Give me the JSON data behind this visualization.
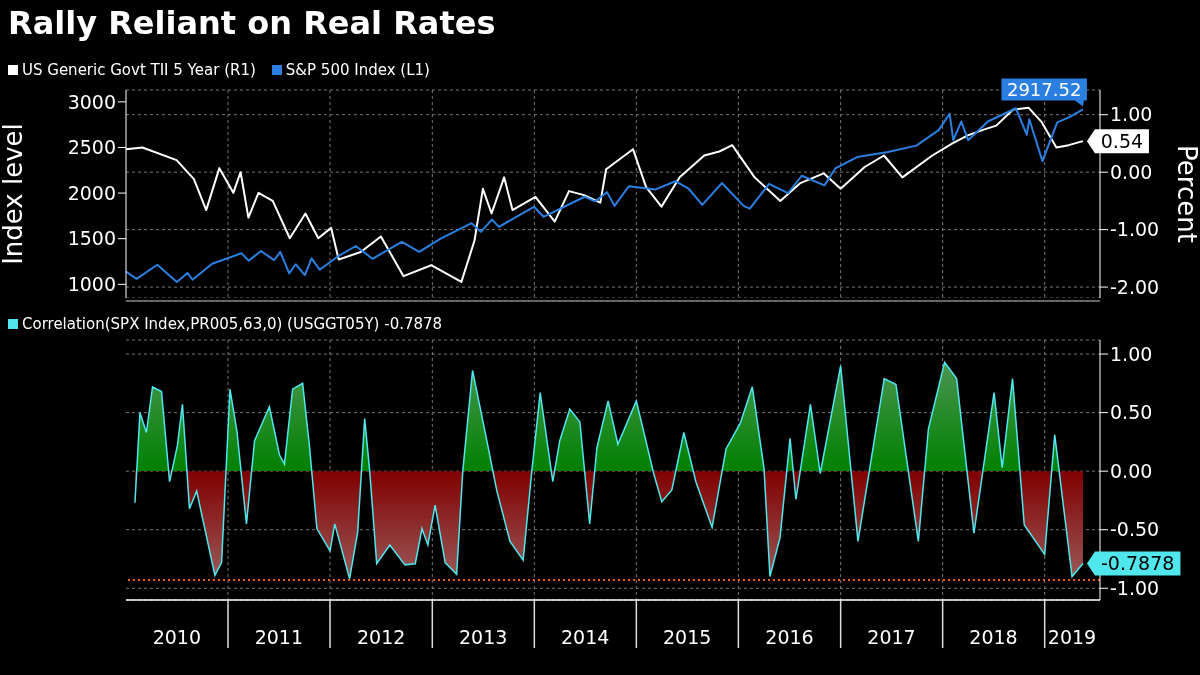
{
  "chart_data": [
    {
      "type": "line",
      "title": "Rally Reliant on Real Rates",
      "ylabel": "Index level",
      "y2label": "Percent",
      "legend": "top left",
      "grid": true,
      "tick_labels": "y",
      "xlim": [
        "2010-01-01",
        "2019-07-18"
      ],
      "xticks": [
        {
          "value": "2011-01-01",
          "label": null
        },
        {
          "value": "2012-01-01",
          "label": null
        },
        {
          "value": "2013-01-01",
          "label": null
        },
        {
          "value": "2014-01-01",
          "label": null
        },
        {
          "value": "2015-01-01",
          "label": null
        },
        {
          "value": "2016-01-01",
          "label": null
        },
        {
          "value": "2017-01-01",
          "label": null
        },
        {
          "value": "2018-01-01",
          "label": null
        },
        {
          "value": "2019-01-01",
          "label": null
        }
      ],
      "ylim": [
        850,
        3130
      ],
      "yticks": [
        1000,
        1500,
        2000,
        2500,
        3000
      ],
      "y2lim": [
        -2.19,
        1.43
      ],
      "y2ticks": [
        {
          "value": -2,
          "label": "-2.00"
        },
        {
          "value": -1,
          "label": "-1.00"
        },
        {
          "value": 0,
          "label": "0.00"
        },
        {
          "value": 1,
          "label": "1.00"
        }
      ],
      "series": [
        {
          "name": "US Generic Govt TII 5 Year (R1)",
          "color": "#ffffff",
          "axis": "y2",
          "x": [
            "2010-01-01",
            "2010-03-01",
            "2010-07-01",
            "2010-09-01",
            "2010-10-15",
            "2010-12-01",
            "2011-01-20",
            "2011-02-15",
            "2011-03-15",
            "2011-04-20",
            "2011-06-10",
            "2011-08-10",
            "2011-10-05",
            "2011-11-20",
            "2012-01-05",
            "2012-02-01",
            "2012-04-20",
            "2012-07-01",
            "2012-09-20",
            "2012-12-28",
            "2013-04-15",
            "2013-06-01",
            "2013-07-01",
            "2013-08-01",
            "2013-09-15",
            "2013-10-15",
            "2014-01-05",
            "2014-03-15",
            "2014-05-05",
            "2014-06-28",
            "2014-08-25",
            "2014-09-15",
            "2014-12-20",
            "2015-02-05",
            "2015-04-01",
            "2015-06-05",
            "2015-09-01",
            "2015-10-25",
            "2015-12-10",
            "2016-02-28",
            "2016-05-30",
            "2016-08-10",
            "2016-11-01",
            "2017-01-01",
            "2017-03-28",
            "2017-06-05",
            "2017-08-10",
            "2017-11-25",
            "2018-02-05",
            "2018-04-01",
            "2018-05-28",
            "2018-07-12",
            "2018-09-10",
            "2018-11-05",
            "2018-12-20",
            "2019-02-12",
            "2019-03-28",
            "2019-05-18"
          ],
          "values": [
            0.4,
            0.43,
            0.21,
            -0.12,
            -0.66,
            0.07,
            -0.36,
            0.0,
            -0.79,
            -0.36,
            -0.5,
            -1.15,
            -0.72,
            -1.15,
            -0.97,
            -1.52,
            -1.39,
            -1.12,
            -1.81,
            -1.62,
            -1.91,
            -1.19,
            -0.29,
            -0.72,
            -0.09,
            -0.66,
            -0.43,
            -0.86,
            -0.33,
            -0.4,
            -0.53,
            0.05,
            0.4,
            -0.26,
            -0.6,
            -0.09,
            0.29,
            0.36,
            0.47,
            -0.09,
            -0.5,
            -0.19,
            -0.02,
            -0.29,
            0.09,
            0.29,
            -0.09,
            0.29,
            0.5,
            0.64,
            0.74,
            0.81,
            1.09,
            1.12,
            0.88,
            0.43,
            0.47,
            0.54
          ],
          "value_labels": [
            null,
            null,
            null,
            null,
            null,
            null,
            null,
            null,
            null,
            null,
            null,
            null,
            null,
            null,
            null,
            null,
            null,
            null,
            null,
            null,
            null,
            null,
            null,
            null,
            null,
            null,
            null,
            null,
            null,
            null,
            null,
            null,
            null,
            null,
            null,
            null,
            null,
            null,
            null,
            null,
            null,
            null,
            null,
            null,
            null,
            null,
            null,
            null,
            null,
            null,
            null,
            null,
            null,
            null,
            null,
            null,
            null,
            "0.54"
          ]
        },
        {
          "name": "S&P 500 Index (L1)",
          "color": "#2a7fe0",
          "x": [
            "2010-01-01",
            "2010-02-08",
            "2010-04-23",
            "2010-07-02",
            "2010-08-09",
            "2010-08-27",
            "2010-11-05",
            "2011-02-18",
            "2011-03-16",
            "2011-04-29",
            "2011-06-15",
            "2011-07-07",
            "2011-08-08",
            "2011-08-31",
            "2011-10-03",
            "2011-10-27",
            "2011-11-25",
            "2012-01-31",
            "2012-04-02",
            "2012-06-01",
            "2012-09-14",
            "2012-11-15",
            "2013-01-31",
            "2013-05-21",
            "2013-06-24",
            "2013-08-02",
            "2013-08-27",
            "2013-12-31",
            "2014-02-03",
            "2014-06-30",
            "2014-08-07",
            "2014-09-18",
            "2014-10-15",
            "2014-12-05",
            "2015-03-11",
            "2015-05-21",
            "2015-07-08",
            "2015-08-25",
            "2015-11-03",
            "2016-01-20",
            "2016-02-11",
            "2016-04-20",
            "2016-06-27",
            "2016-08-15",
            "2016-11-04",
            "2016-12-13",
            "2017-03-01",
            "2017-06-19",
            "2017-09-29",
            "2017-12-18",
            "2018-01-26",
            "2018-02-08",
            "2018-03-09",
            "2018-04-02",
            "2018-06-12",
            "2018-09-20",
            "2018-10-29",
            "2018-11-07",
            "2018-12-24",
            "2019-02-15",
            "2019-03-29",
            "2019-05-18"
          ],
          "values": [
            1140,
            1060,
            1215,
            1025,
            1125,
            1050,
            1225,
            1340,
            1260,
            1365,
            1265,
            1355,
            1120,
            1220,
            1100,
            1285,
            1160,
            1310,
            1420,
            1280,
            1465,
            1355,
            1500,
            1670,
            1575,
            1710,
            1630,
            1850,
            1740,
            1960,
            1910,
            2010,
            1860,
            2075,
            2040,
            2130,
            2045,
            1870,
            2110,
            1860,
            1830,
            2100,
            2000,
            2190,
            2085,
            2270,
            2395,
            2450,
            2520,
            2690,
            2870,
            2580,
            2785,
            2580,
            2785,
            2930,
            2640,
            2810,
            2350,
            2775,
            2830,
            2917.52
          ],
          "value_labels": [
            null,
            null,
            null,
            null,
            null,
            null,
            null,
            null,
            null,
            null,
            null,
            null,
            null,
            null,
            null,
            null,
            null,
            null,
            null,
            null,
            null,
            null,
            null,
            null,
            null,
            null,
            null,
            null,
            null,
            null,
            null,
            null,
            null,
            null,
            null,
            null,
            null,
            null,
            null,
            null,
            null,
            null,
            null,
            null,
            null,
            null,
            null,
            null,
            null,
            null,
            null,
            null,
            null,
            null,
            null,
            null,
            null,
            null,
            null,
            null,
            null,
            "2917.52"
          ]
        }
      ]
    },
    {
      "type": "area",
      "legend": "top left",
      "grid": true,
      "xlim": [
        "2010-01-01",
        "2019-07-18"
      ],
      "xticks": [
        {
          "value": "2010-07-02",
          "label": "2010"
        },
        {
          "value": "2011-01-01",
          "label": null
        },
        {
          "value": "2011-07-02",
          "label": "2011"
        },
        {
          "value": "2012-01-01",
          "label": null
        },
        {
          "value": "2012-07-02",
          "label": "2012"
        },
        {
          "value": "2013-01-01",
          "label": null
        },
        {
          "value": "2013-07-02",
          "label": "2013"
        },
        {
          "value": "2014-01-01",
          "label": null
        },
        {
          "value": "2014-07-02",
          "label": "2014"
        },
        {
          "value": "2015-01-01",
          "label": null
        },
        {
          "value": "2015-07-02",
          "label": "2015"
        },
        {
          "value": "2016-01-01",
          "label": null
        },
        {
          "value": "2016-07-02",
          "label": "2016"
        },
        {
          "value": "2017-01-01",
          "label": null
        },
        {
          "value": "2017-07-02",
          "label": "2017"
        },
        {
          "value": "2018-01-01",
          "label": null
        },
        {
          "value": "2018-07-02",
          "label": "2018"
        },
        {
          "value": "2019-01-01",
          "label": null
        },
        {
          "value": "2019-04-09",
          "label": "2019"
        }
      ],
      "ylim": [
        -1.1,
        1.12
      ],
      "yticks": [
        {
          "value": -1,
          "label": "-1.00"
        },
        {
          "value": -0.5,
          "label": "-0.50"
        },
        {
          "value": 0,
          "label": "0.00"
        },
        {
          "value": 0.5,
          "label": "0.50"
        },
        {
          "value": 1,
          "label": "1.00"
        }
      ],
      "ref_lines": [
        {
          "axis": "y",
          "value": -0.93,
          "color": "#e8601c",
          "line_style": "dotted"
        }
      ],
      "series": [
        {
          "name": "Correlation(SPX Index,PR005,63,0) (USGGT05Y) -0.7878",
          "color": "#4fe6ec",
          "x": [
            "2010-02-02",
            "2010-02-20",
            "2010-03-15",
            "2010-04-06",
            "2010-05-08",
            "2010-06-06",
            "2010-07-04",
            "2010-07-22",
            "2010-08-16",
            "2010-09-11",
            "2010-11-15",
            "2010-12-09",
            "2011-01-08",
            "2011-02-02",
            "2011-03-08",
            "2011-04-06",
            "2011-05-29",
            "2011-07-04",
            "2011-07-22",
            "2011-08-20",
            "2011-09-25",
            "2011-10-20",
            "2011-11-15",
            "2012-01-01",
            "2012-01-18",
            "2012-03-11",
            "2012-04-09",
            "2012-05-04",
            "2012-05-22",
            "2012-06-16",
            "2012-08-02",
            "2012-09-25",
            "2012-11-01",
            "2012-11-25",
            "2012-12-16",
            "2013-01-11",
            "2013-02-16",
            "2013-03-29",
            "2013-04-20",
            "2013-05-25",
            "2013-07-15",
            "2013-08-20",
            "2013-10-06",
            "2013-11-22",
            "2013-12-23",
            "2014-01-22",
            "2014-03-08",
            "2014-04-02",
            "2014-05-08",
            "2014-06-13",
            "2014-07-18",
            "2014-08-13",
            "2014-09-22",
            "2014-10-27",
            "2015-01-01",
            "2015-03-04",
            "2015-04-02",
            "2015-05-08",
            "2015-06-20",
            "2015-08-02",
            "2015-09-29",
            "2015-11-18",
            "2016-01-08",
            "2016-02-20",
            "2016-04-02",
            "2016-04-23",
            "2016-05-29",
            "2016-07-04",
            "2016-07-25",
            "2016-09-15",
            "2016-10-20",
            "2017-01-01",
            "2017-03-04",
            "2017-06-06",
            "2017-07-18",
            "2017-10-06",
            "2017-11-11",
            "2018-01-08",
            "2018-02-20",
            "2018-04-23",
            "2018-07-04",
            "2018-08-02",
            "2018-09-08",
            "2018-10-20",
            "2019-01-01",
            "2019-02-06",
            "2019-04-09",
            "2019-05-18"
          ],
          "values": [
            -0.27,
            0.5,
            0.33,
            0.72,
            0.68,
            -0.09,
            0.22,
            0.57,
            -0.32,
            -0.17,
            -0.89,
            -0.78,
            0.7,
            0.34,
            -0.45,
            0.26,
            0.55,
            0.14,
            0.06,
            0.7,
            0.75,
            0.2,
            -0.49,
            -0.68,
            -0.45,
            -0.92,
            -0.52,
            0.45,
            0.0,
            -0.79,
            -0.63,
            -0.8,
            -0.79,
            -0.49,
            -0.63,
            -0.29,
            -0.78,
            -0.88,
            0.0,
            0.86,
            0.26,
            -0.17,
            -0.6,
            -0.76,
            0.0,
            0.67,
            -0.09,
            0.26,
            0.53,
            0.42,
            -0.45,
            0.2,
            0.6,
            0.23,
            0.6,
            -0.02,
            -0.26,
            -0.16,
            0.33,
            -0.09,
            -0.48,
            0.19,
            0.41,
            0.72,
            0.02,
            -0.9,
            -0.57,
            0.28,
            -0.24,
            0.57,
            -0.02,
            0.9,
            -0.6,
            0.79,
            0.74,
            -0.6,
            0.36,
            0.93,
            0.79,
            -0.53,
            0.67,
            0.03,
            0.79,
            -0.46,
            -0.71,
            0.31,
            -0.9,
            -0.7878
          ],
          "value_labels": [
            null,
            null,
            null,
            null,
            null,
            null,
            null,
            null,
            null,
            null,
            null,
            null,
            null,
            null,
            null,
            null,
            null,
            null,
            null,
            null,
            null,
            null,
            null,
            null,
            null,
            null,
            null,
            null,
            null,
            null,
            null,
            null,
            null,
            null,
            null,
            null,
            null,
            null,
            null,
            null,
            null,
            null,
            null,
            null,
            null,
            null,
            null,
            null,
            null,
            null,
            null,
            null,
            null,
            null,
            null,
            null,
            null,
            null,
            null,
            null,
            null,
            null,
            null,
            null,
            null,
            null,
            null,
            null,
            null,
            null,
            null,
            null,
            null,
            null,
            null,
            null,
            null,
            null,
            null,
            null,
            null,
            null,
            null,
            null,
            null,
            null,
            null,
            "-0.7878"
          ]
        }
      ]
    }
  ]
}
